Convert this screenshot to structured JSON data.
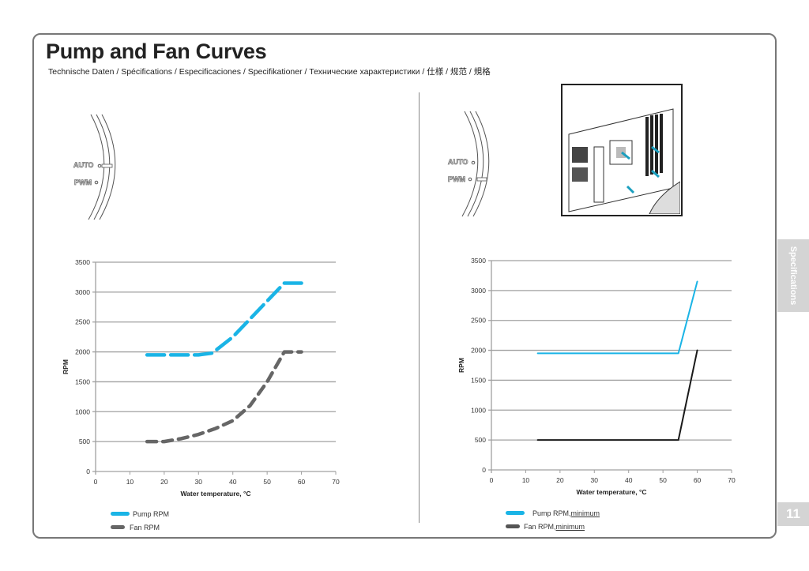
{
  "header": {
    "title": "Pump and Fan Curves",
    "subtitle": "Technische Daten / Spécifications  / Especificaciones / Specifikationer / Технические характеристики / 仕様 / 规范 / 規格"
  },
  "side_tab": {
    "label": "Specifications"
  },
  "page_number": "11",
  "switch_left": {
    "auto": "AUTO",
    "pwm": "PWM"
  },
  "switch_right": {
    "auto": "AUTO",
    "pwm": "PWM"
  },
  "colors": {
    "pump": "#1ab4e6",
    "fan_left": "#666666",
    "fan_right": "#1a1a1a",
    "grid": "#a0a0a0"
  },
  "chart_data": [
    {
      "type": "line",
      "style": "dashed",
      "xlabel": "Water temperature, °C",
      "ylabel": "RPM",
      "xlim": [
        0,
        70
      ],
      "ylim": [
        0,
        3500
      ],
      "xticks": [
        0,
        10,
        20,
        30,
        40,
        50,
        60,
        70
      ],
      "yticks": [
        0,
        500,
        1000,
        1500,
        2000,
        2500,
        3000,
        3500
      ],
      "grid": true,
      "legend": {
        "placement": "bottom-left",
        "entries": [
          "Pump RPM",
          "Fan RPM"
        ]
      },
      "series": [
        {
          "name": "Pump RPM",
          "x": [
            15,
            20,
            25,
            30,
            34,
            40,
            45,
            50,
            55,
            60
          ],
          "y": [
            1950,
            1950,
            1950,
            1950,
            1980,
            2250,
            2550,
            2850,
            3150,
            3150
          ]
        },
        {
          "name": "Fan RPM",
          "x": [
            15,
            20,
            25,
            30,
            35,
            40,
            45,
            50,
            55,
            60
          ],
          "y": [
            500,
            500,
            550,
            620,
            720,
            850,
            1100,
            1500,
            2000,
            2000
          ]
        }
      ]
    },
    {
      "type": "line",
      "style": "solid",
      "xlabel": "Water temperature, °C",
      "ylabel": "RPM",
      "xlim": [
        0,
        70
      ],
      "ylim": [
        0,
        3500
      ],
      "xticks": [
        0,
        10,
        20,
        30,
        40,
        50,
        60,
        70
      ],
      "yticks": [
        0,
        500,
        1000,
        1500,
        2000,
        2500,
        3000,
        3500
      ],
      "grid": true,
      "legend": {
        "placement": "bottom-left",
        "entries": [
          {
            "prefix": "Pump RPM, ",
            "underlined": "minimum"
          },
          {
            "prefix": "Fan RPM, ",
            "underlined": "minimum"
          }
        ]
      },
      "series": [
        {
          "name": "Pump RPM, minimum",
          "x": [
            13.5,
            54.5,
            60
          ],
          "y": [
            1950,
            1950,
            3150
          ]
        },
        {
          "name": "Fan RPM, minimum",
          "x": [
            13.5,
            54.5,
            60
          ],
          "y": [
            500,
            500,
            2000
          ]
        }
      ]
    }
  ]
}
